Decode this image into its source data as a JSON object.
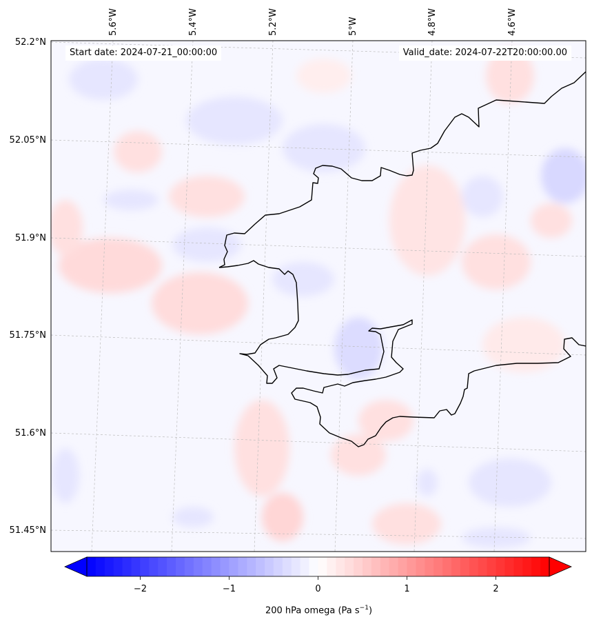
{
  "header": {
    "start_label": "Start date:",
    "start_value": "2024-07-21_00:00:00",
    "valid_label": "Valid_date:",
    "valid_value": "2024-07-22T20:00:00.00"
  },
  "axes": {
    "lon_labels": [
      "5.6°W",
      "5.4°W",
      "5.2°W",
      "5°W",
      "4.8°W",
      "4.6°W"
    ],
    "lat_labels": [
      "52.2°N",
      "52.05°N",
      "51.9°N",
      "51.75°N",
      "51.6°N",
      "51.45°N"
    ]
  },
  "colorbar": {
    "label": "200 hPa omega (Pa s",
    "label_exp": "−1",
    "label_tail": ")",
    "ticks": [
      "−2",
      "−1",
      "0",
      "1",
      "2"
    ],
    "range": [
      -2.6,
      2.6
    ],
    "low_color": "#0000ff",
    "mid_color": "#ffffff",
    "high_color": "#ff0000"
  },
  "colors": {
    "coastline": "#000000",
    "gridline": "#bbbbbb",
    "field_background": "#f7f7ff"
  }
}
